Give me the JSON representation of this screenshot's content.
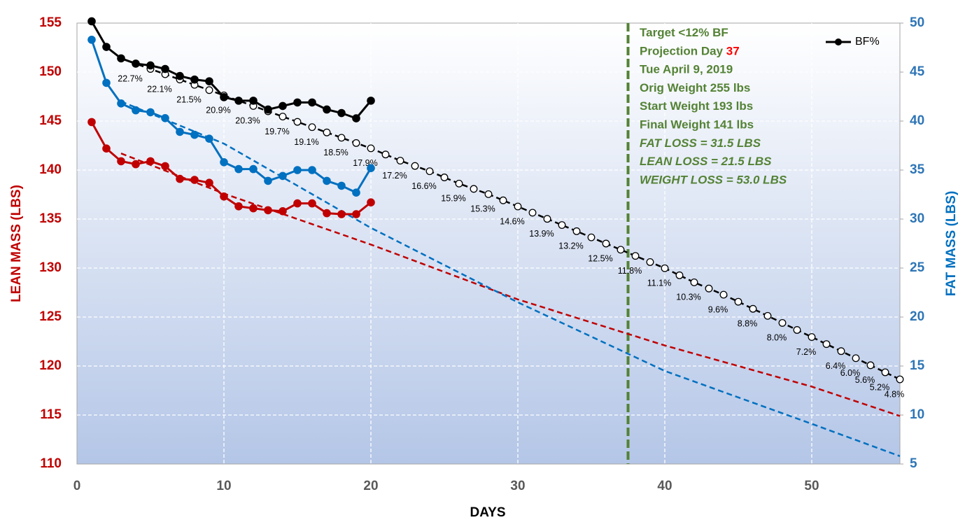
{
  "chart_data": {
    "type": "line",
    "xlabel": "DAYS",
    "ylabel": "LEAN MASS (LBS)",
    "y2label": "FAT MASS (LBS)",
    "xlim": [
      0,
      56
    ],
    "xticks": [
      0,
      10,
      20,
      30,
      40,
      50
    ],
    "ylim": [
      110,
      155
    ],
    "yticks": [
      110,
      115,
      120,
      125,
      130,
      135,
      140,
      145,
      150,
      155
    ],
    "y2lim": [
      5,
      50
    ],
    "y2ticks": [
      5,
      10,
      15,
      20,
      25,
      30,
      35,
      40,
      45,
      50
    ],
    "y3lim": [
      0,
      25
    ],
    "grid": true,
    "legend": "upper right",
    "target_day": 37.5,
    "target_color": "#548235",
    "annotations": [
      {
        "text": "Target <12% BF",
        "italic": false
      },
      {
        "text": "Projection Day ",
        "emph": "37",
        "italic": false
      },
      {
        "text": "Tue April 9, 2019",
        "italic": false
      },
      {
        "text": "Orig Weight 255 lbs",
        "italic": false
      },
      {
        "text": "Start Weight 193 lbs",
        "italic": false
      },
      {
        "text": "Final Weight 141 lbs",
        "italic": false
      },
      {
        "text": "FAT LOSS = 31.5 LBS",
        "italic": true
      },
      {
        "text": "LEAN LOSS = 21.5 LBS",
        "italic": true
      },
      {
        "text": "WEIGHT LOSS = 53.0 LBS",
        "italic": true
      }
    ],
    "series": [
      {
        "color": "#c00000",
        "axis": "y",
        "dashed": true,
        "markers": false,
        "x": [
          3,
          10,
          20,
          30,
          40,
          50,
          56
        ],
        "values": [
          141.7,
          137.6,
          132.4,
          126.8,
          122.1,
          117.9,
          114.9
        ]
      },
      {
        "color": "#0070c0",
        "axis": "y2",
        "dashed": true,
        "markers": false,
        "x": [
          3,
          10,
          20,
          30,
          40,
          50,
          56
        ],
        "values": [
          42.0,
          37.7,
          29.1,
          21.5,
          14.5,
          9.1,
          5.8
        ]
      },
      {
        "color": "#000000",
        "axis": "y3",
        "dashed": true,
        "markers": "open",
        "x": [
          3,
          4,
          5,
          6,
          7,
          8,
          9,
          10,
          11,
          12,
          13,
          14,
          15,
          16,
          17,
          18,
          19,
          20,
          21,
          22,
          23,
          24,
          25,
          26,
          27,
          28,
          29,
          30,
          31,
          32,
          33,
          34,
          35,
          36,
          37,
          38,
          39,
          40,
          41,
          42,
          43,
          44,
          45,
          46,
          47,
          48,
          49,
          50,
          51,
          52,
          53,
          54,
          55,
          56
        ],
        "values": [
          23.0,
          22.7,
          22.4,
          22.1,
          21.8,
          21.5,
          21.2,
          20.9,
          20.6,
          20.3,
          20.0,
          19.7,
          19.4,
          19.1,
          18.8,
          18.5,
          18.2,
          17.9,
          17.55,
          17.2,
          16.9,
          16.6,
          16.25,
          15.9,
          15.6,
          15.3,
          14.95,
          14.6,
          14.25,
          13.9,
          13.55,
          13.2,
          12.85,
          12.5,
          12.15,
          11.8,
          11.45,
          11.1,
          10.7,
          10.3,
          9.95,
          9.6,
          9.2,
          8.8,
          8.4,
          8.0,
          7.6,
          7.2,
          6.8,
          6.4,
          6.0,
          5.6,
          5.2,
          4.8
        ],
        "value_labels": [
          null,
          "22.7%",
          null,
          "22.1%",
          null,
          "21.5%",
          null,
          "20.9%",
          null,
          "20.3%",
          null,
          "19.7%",
          null,
          "19.1%",
          null,
          "18.5%",
          null,
          "17.9%",
          null,
          "17.2%",
          null,
          "16.6%",
          null,
          "15.9%",
          null,
          "15.3%",
          null,
          "14.6%",
          null,
          "13.9%",
          null,
          "13.2%",
          null,
          "12.5%",
          null,
          "11.8%",
          null,
          "11.1%",
          null,
          "10.3%",
          null,
          "9.6%",
          null,
          "8.8%",
          null,
          "8.0%",
          null,
          "7.2%",
          null,
          "6.4%",
          "6.0%",
          "5.6%",
          "5.2%",
          "4.8%"
        ]
      },
      {
        "color": "#c00000",
        "axis": "y",
        "dashed": false,
        "markers": "filled",
        "x": [
          1,
          2,
          3,
          4,
          5,
          6,
          7,
          8,
          9,
          10,
          11,
          12,
          13,
          14,
          15,
          16,
          17,
          18,
          19,
          20
        ],
        "values": [
          144.9,
          142.2,
          140.9,
          140.6,
          140.9,
          140.4,
          139.1,
          139.0,
          138.7,
          137.3,
          136.3,
          136.1,
          135.9,
          135.8,
          136.6,
          136.6,
          135.6,
          135.5,
          135.5,
          136.7
        ]
      },
      {
        "color": "#0070c0",
        "axis": "y2",
        "dashed": false,
        "markers": "filled",
        "x": [
          1,
          2,
          3,
          4,
          5,
          6,
          7,
          8,
          9,
          10,
          11,
          12,
          13,
          14,
          15,
          16,
          17,
          18,
          19,
          20
        ],
        "values": [
          48.3,
          43.9,
          41.8,
          41.1,
          40.9,
          40.3,
          38.9,
          38.6,
          38.2,
          35.8,
          35.1,
          35.1,
          33.9,
          34.4,
          35.0,
          35.0,
          33.9,
          33.4,
          32.7,
          35.2
        ]
      },
      {
        "name": "BF%",
        "color": "#000000",
        "axis": "y3",
        "dashed": false,
        "markers": "filled",
        "x": [
          1,
          2,
          3,
          4,
          5,
          6,
          7,
          8,
          9,
          10,
          11,
          12,
          13,
          14,
          15,
          16,
          17,
          18,
          19,
          20
        ],
        "values": [
          25.1,
          23.65,
          23.0,
          22.7,
          22.6,
          22.4,
          22.0,
          21.8,
          21.7,
          20.8,
          20.6,
          20.6,
          20.1,
          20.3,
          20.5,
          20.5,
          20.1,
          19.9,
          19.6,
          20.6
        ]
      }
    ]
  }
}
